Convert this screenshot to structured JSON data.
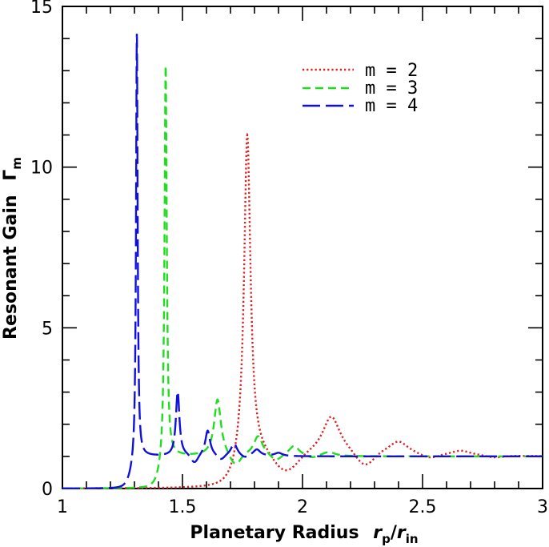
{
  "chart_data": {
    "type": "line",
    "xlabel": "Planetary Radius",
    "xlabel_math": {
      "base": "r",
      "sub": "p",
      "sep": "/",
      "base2": "r",
      "sub2": "in"
    },
    "ylabel": "Resonant Gain",
    "ylabel_math": {
      "base": "Γ",
      "sub": "m"
    },
    "xlim": [
      1,
      3
    ],
    "ylim": [
      0,
      15
    ],
    "xticks": [
      1,
      1.5,
      2,
      2.5,
      3
    ],
    "xtick_labels": [
      "1",
      "1.5",
      "2",
      "2.5",
      "3"
    ],
    "yticks": [
      0,
      5,
      10,
      15
    ],
    "ytick_labels": [
      "0",
      "5",
      "10",
      "15"
    ],
    "grid": false,
    "legend_position": "top-right",
    "series": [
      {
        "name": "m = 2",
        "color": "#e02020",
        "dash": "dotted",
        "peaks": [
          {
            "x": 1.77,
            "h": 10.1,
            "w": 0.016
          },
          {
            "x": 2.12,
            "h": 1.2,
            "w": 0.045
          },
          {
            "x": 2.4,
            "h": 0.42,
            "w": 0.05
          },
          {
            "x": 2.66,
            "h": 0.15,
            "w": 0.05
          }
        ],
        "dips": [
          {
            "x": 1.93,
            "d": 0.6,
            "w": 0.07
          },
          {
            "x": 2.26,
            "d": 0.42,
            "w": 0.05
          },
          {
            "x": 2.53,
            "d": 0.12,
            "w": 0.05
          },
          {
            "x": 2.8,
            "d": 0.06,
            "w": 0.05
          }
        ],
        "onset": 1.73,
        "rise_width": 0.02,
        "baseline": 1.0
      },
      {
        "name": "m = 3",
        "color": "#20dd20",
        "dash": "dashed",
        "peaks": [
          {
            "x": 1.43,
            "h": 12.3,
            "w": 0.0055
          },
          {
            "x": 1.646,
            "h": 1.75,
            "w": 0.017
          },
          {
            "x": 1.815,
            "h": 0.6,
            "w": 0.022
          },
          {
            "x": 1.965,
            "h": 0.3,
            "w": 0.025
          },
          {
            "x": 2.11,
            "h": 0.12,
            "w": 0.03
          }
        ],
        "dips": [
          {
            "x": 1.72,
            "d": 0.35,
            "w": 0.03
          },
          {
            "x": 1.89,
            "d": 0.18,
            "w": 0.03
          },
          {
            "x": 2.04,
            "d": 0.08,
            "w": 0.03
          }
        ],
        "onset": 1.41,
        "rise_width": 0.012,
        "baseline": 1.0
      },
      {
        "name": "m = 4",
        "color": "#1010dd",
        "dash": "longdash",
        "peaks": [
          {
            "x": 1.31,
            "h": 13.3,
            "w": 0.004
          },
          {
            "x": 1.48,
            "h": 2.0,
            "w": 0.009
          },
          {
            "x": 1.605,
            "h": 0.78,
            "w": 0.012
          },
          {
            "x": 1.715,
            "h": 0.38,
            "w": 0.015
          },
          {
            "x": 1.81,
            "h": 0.2,
            "w": 0.018
          },
          {
            "x": 1.9,
            "h": 0.1,
            "w": 0.02
          }
        ],
        "dips": [
          {
            "x": 1.55,
            "d": 0.25,
            "w": 0.02
          },
          {
            "x": 1.66,
            "d": 0.15,
            "w": 0.02
          },
          {
            "x": 1.76,
            "d": 0.08,
            "w": 0.02
          }
        ],
        "onset": 1.29,
        "rise_width": 0.012,
        "baseline": 1.0
      }
    ]
  }
}
